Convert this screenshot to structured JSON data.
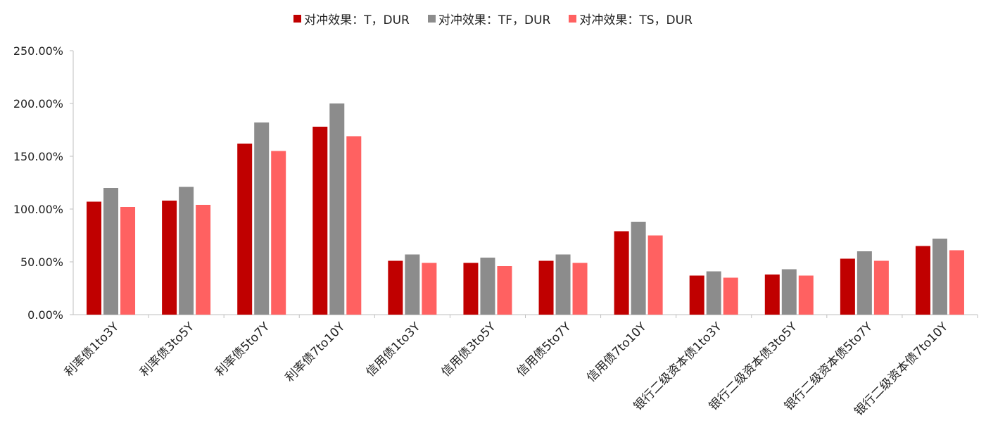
{
  "chart_data": {
    "type": "bar",
    "categories": [
      "利率债1to3Y",
      "利率债3to5Y",
      "利率债5to7Y",
      "利率债7to10Y",
      "信用债1to3Y",
      "信用债3to5Y",
      "信用债5to7Y",
      "信用债7to10Y",
      "银行二级资本债1to3Y",
      "银行二级资本债3to5Y",
      "银行二级资本债5to7Y",
      "银行二级资本债7to10Y"
    ],
    "series": [
      {
        "name": "对冲效果：T，DUR",
        "color": "#c00000",
        "values": [
          107,
          108,
          162,
          178,
          51,
          49,
          51,
          79,
          37,
          38,
          53,
          65
        ]
      },
      {
        "name": "对冲效果：TF，DUR",
        "color": "#8c8c8c",
        "values": [
          120,
          121,
          182,
          200,
          57,
          54,
          57,
          88,
          41,
          43,
          60,
          72
        ]
      },
      {
        "name": "对冲效果：TS，DUR",
        "color": "#ff6161",
        "values": [
          102,
          104,
          155,
          169,
          49,
          46,
          49,
          75,
          35,
          37,
          51,
          61
        ]
      }
    ],
    "ylim": [
      0,
      250
    ],
    "yticks": [
      "0.00%",
      "50.00%",
      "100.00%",
      "150.00%",
      "200.00%",
      "250.00%"
    ],
    "ytick_values": [
      0,
      50,
      100,
      150,
      200,
      250
    ],
    "xlabel": "",
    "ylabel": "",
    "grid": false,
    "legend": "top-center"
  }
}
